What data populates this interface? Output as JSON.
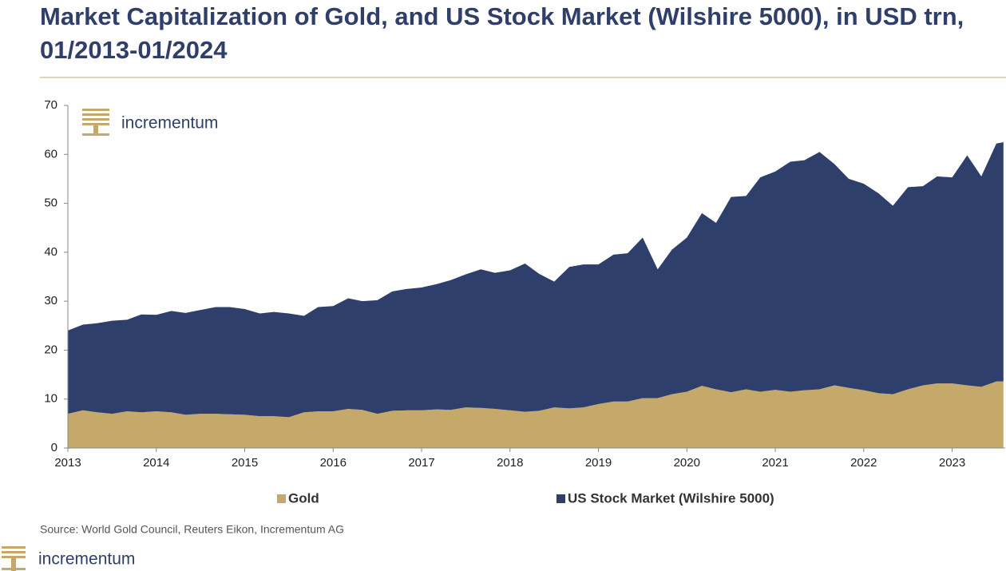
{
  "chart_data": {
    "type": "stacked_area",
    "title": "Market Capitalization of Gold, and US Stock Market (Wilshire 5000), in USD trn, 01/2013-01/2024",
    "source": "Source: World Gold Council, Reuters Eikon, Incrementum AG",
    "logo_text": "incrementum",
    "xlim": [
      2013,
      2023.6
    ],
    "xticks": [
      2013,
      2014,
      2015,
      2016,
      2017,
      2018,
      2019,
      2020,
      2021,
      2022,
      2023
    ],
    "ylim": [
      0,
      70
    ],
    "yticks": [
      0,
      10,
      20,
      30,
      40,
      50,
      60,
      70
    ],
    "x": [
      2013,
      2013.17,
      2013.33,
      2013.5,
      2013.67,
      2013.83,
      2014,
      2014.17,
      2014.33,
      2014.5,
      2014.67,
      2014.83,
      2015,
      2015.17,
      2015.33,
      2015.5,
      2015.67,
      2015.83,
      2016,
      2016.17,
      2016.33,
      2016.5,
      2016.67,
      2016.83,
      2017,
      2017.17,
      2017.33,
      2017.5,
      2017.67,
      2017.83,
      2018,
      2018.17,
      2018.33,
      2018.5,
      2018.67,
      2018.83,
      2019,
      2019.17,
      2019.33,
      2019.5,
      2019.67,
      2019.83,
      2020,
      2020.17,
      2020.33,
      2020.5,
      2020.67,
      2020.83,
      2021,
      2021.17,
      2021.33,
      2021.5,
      2021.67,
      2021.83,
      2022,
      2022.17,
      2022.33,
      2022.5,
      2022.67,
      2022.83,
      2023,
      2023.17,
      2023.33,
      2023.5,
      2023.58
    ],
    "series": [
      {
        "name": "Gold",
        "color": "#c4a96b",
        "values": [
          7.0,
          7.7,
          7.3,
          7.0,
          7.5,
          7.3,
          7.5,
          7.3,
          6.8,
          7.0,
          7.0,
          6.9,
          6.8,
          6.5,
          6.5,
          6.3,
          7.3,
          7.5,
          7.5,
          8.0,
          7.8,
          7.0,
          7.6,
          7.7,
          7.7,
          7.9,
          7.8,
          8.3,
          8.2,
          8.0,
          7.7,
          7.4,
          7.6,
          8.3,
          8.1,
          8.3,
          9.0,
          9.5,
          9.5,
          10.2,
          10.2,
          11.0,
          11.5,
          12.7,
          12.0,
          11.4,
          12.0,
          11.5,
          11.9,
          11.5,
          11.8,
          12.0,
          12.8,
          12.3,
          11.8,
          11.2,
          11.0,
          12.0,
          12.8,
          13.2,
          13.2,
          12.8,
          12.5,
          13.6,
          13.6
        ]
      },
      {
        "name": "US Stock Market (Wilshire 5000)",
        "color": "#2e3f6b",
        "values": [
          17.0,
          17.5,
          18.2,
          19.0,
          18.7,
          20.0,
          19.7,
          20.7,
          20.8,
          21.2,
          21.8,
          21.9,
          21.6,
          21.0,
          21.3,
          21.2,
          19.7,
          21.3,
          21.5,
          22.6,
          22.2,
          23.2,
          24.4,
          24.8,
          25.1,
          25.6,
          26.5,
          27.2,
          28.3,
          27.8,
          28.6,
          30.3,
          28.0,
          25.7,
          28.9,
          29.2,
          28.5,
          30.0,
          30.3,
          32.8,
          26.3,
          29.5,
          31.5,
          35.3,
          34.0,
          39.9,
          39.5,
          43.8,
          44.6,
          47.0,
          47.0,
          48.5,
          45.2,
          42.7,
          42.2,
          40.8,
          38.5,
          41.3,
          40.7,
          42.3,
          42.1,
          47.0,
          43.0,
          48.6,
          48.9
        ]
      }
    ]
  }
}
